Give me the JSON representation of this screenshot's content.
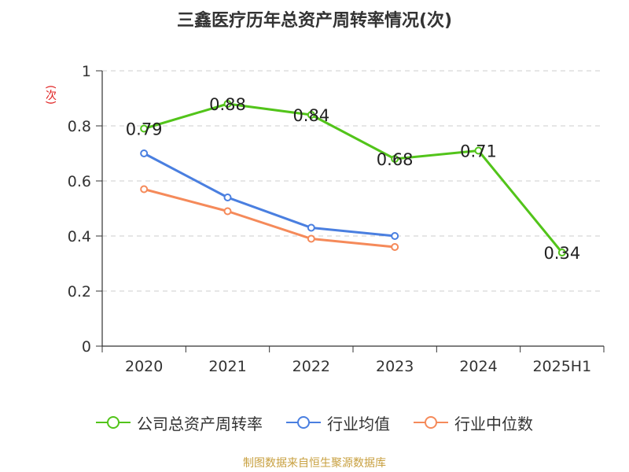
{
  "chart_data": {
    "type": "line",
    "title": "三鑫医疗历年总资产周转率情况(次)",
    "ylabel": "(次)",
    "categories": [
      "2020",
      "2021",
      "2022",
      "2023",
      "2024",
      "2025H1"
    ],
    "ylim": [
      0,
      1
    ],
    "yticks": [
      "0",
      "0.2",
      "0.4",
      "0.6",
      "0.8",
      "1"
    ],
    "grid": true,
    "legend_position": "bottom",
    "series": [
      {
        "name": "公司总资产周转率",
        "color": "#52c41a",
        "values": [
          0.79,
          0.88,
          0.84,
          0.68,
          0.71,
          0.34
        ],
        "labels": [
          "0.79",
          "0.88",
          "0.84",
          "0.68",
          "0.71",
          "0.34"
        ]
      },
      {
        "name": "行业均值",
        "color": "#4a7fe0",
        "values": [
          0.7,
          0.54,
          0.43,
          0.4,
          null,
          null
        ]
      },
      {
        "name": "行业中位数",
        "color": "#f58a5a",
        "values": [
          0.57,
          0.49,
          0.39,
          0.36,
          null,
          null
        ]
      }
    ]
  },
  "source": "制图数据来自恒生聚源数据库"
}
